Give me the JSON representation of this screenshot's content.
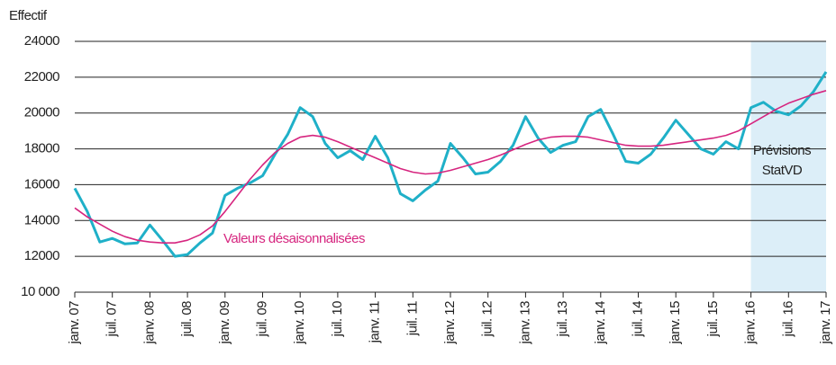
{
  "chart_data": {
    "type": "line",
    "y_label": "Effectif",
    "categories": [
      "janv. 07",
      null,
      null,
      "juil. 07",
      null,
      null,
      "janv. 08",
      null,
      null,
      "juil. 08",
      null,
      null,
      "janv. 09",
      null,
      null,
      "juil. 09",
      null,
      null,
      "janv. 10",
      null,
      null,
      "juil. 10",
      null,
      null,
      "janv. 11",
      null,
      null,
      "juil. 11",
      null,
      null,
      "janv. 12",
      null,
      null,
      "juil. 12",
      null,
      null,
      "janv. 13",
      null,
      null,
      "juil. 13",
      null,
      null,
      "janv. 14",
      null,
      null,
      "juil. 14",
      null,
      null,
      "janv. 15",
      null,
      null,
      "juil. 15",
      null,
      null,
      "janv. 16",
      null,
      null,
      "juil. 16",
      null,
      null,
      "janv. 17"
    ],
    "series": [
      {
        "color": "#1fb0c8",
        "values": [
          15800,
          14500,
          12800,
          13000,
          12700,
          12750,
          13750,
          12900,
          12000,
          12100,
          12750,
          13300,
          15400,
          15800,
          16100,
          16500,
          17700,
          18800,
          20300,
          19800,
          18300,
          17500,
          17900,
          17400,
          18700,
          17500,
          15500,
          15100,
          15700,
          16200,
          18300,
          17500,
          16600,
          16700,
          17300,
          18200,
          19800,
          18600,
          17800,
          18200,
          18400,
          19800,
          20200,
          18800,
          17300,
          17200,
          17700,
          18600,
          19600,
          18800,
          18000,
          17700,
          18400,
          18000,
          20300,
          20600,
          20100,
          19900,
          20400,
          21200,
          22300
        ]
      },
      {
        "name": "Valeurs désaisonnalisées",
        "color": "#d6257f",
        "values": [
          14700,
          14200,
          13800,
          13400,
          13100,
          12900,
          12800,
          12750,
          12750,
          12900,
          13200,
          13700,
          14500,
          15400,
          16300,
          17100,
          17800,
          18300,
          18650,
          18750,
          18650,
          18400,
          18100,
          17800,
          17500,
          17200,
          16900,
          16700,
          16600,
          16650,
          16800,
          17000,
          17200,
          17400,
          17650,
          17950,
          18250,
          18500,
          18650,
          18700,
          18700,
          18650,
          18500,
          18350,
          18200,
          18150,
          18150,
          18200,
          18300,
          18400,
          18500,
          18600,
          18750,
          19000,
          19400,
          19800,
          20200,
          20550,
          20800,
          21050,
          21250
        ]
      }
    ],
    "annotations": [
      "Prévisions",
      "StatVD"
    ],
    "ylim": [
      10000,
      24000
    ],
    "yticks": [
      {
        "value": 10000,
        "label": "10 000"
      },
      12000,
      14000,
      16000,
      18000,
      20000,
      22000,
      24000
    ],
    "grid": true
  }
}
